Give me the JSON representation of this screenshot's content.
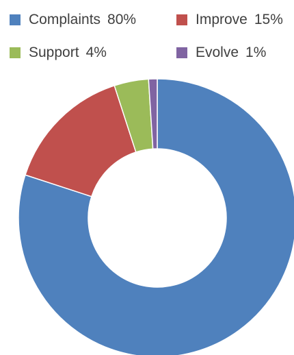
{
  "chart_data": {
    "type": "pie",
    "subtype": "donut",
    "categories": [
      "Complaints",
      "Improve",
      "Support",
      "Evolve"
    ],
    "values": [
      80,
      15,
      4,
      1
    ],
    "value_labels": [
      "80%",
      "15%",
      "4%",
      "1%"
    ],
    "colors": [
      "#4F81BD",
      "#C0504D",
      "#9BBB59",
      "#8064A2"
    ],
    "legend_position": "top",
    "title": "",
    "start_angle": "12 o'clock, clockwise"
  }
}
